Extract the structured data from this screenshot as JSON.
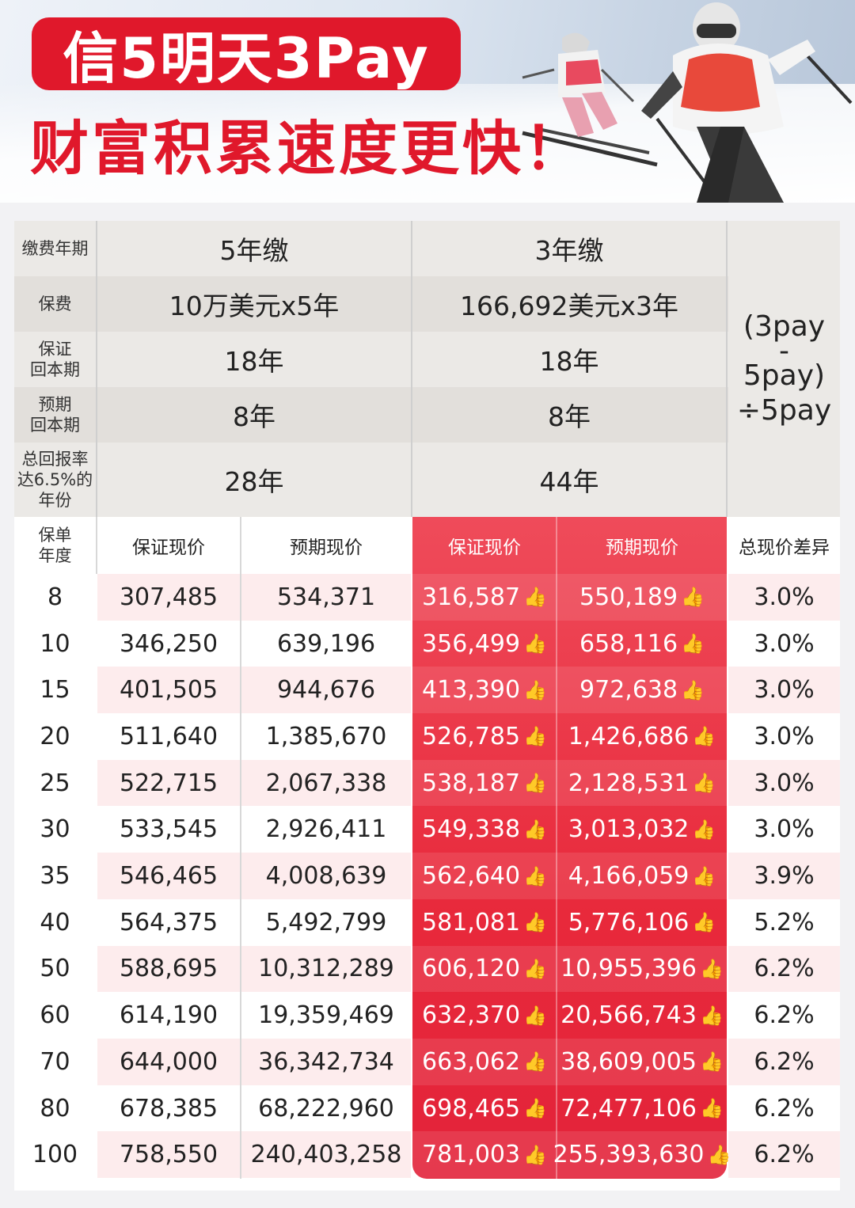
{
  "header": {
    "title_line1": "信5明天3Pay",
    "title_line2": "财富积累速度更快！"
  },
  "top_table": {
    "rows": [
      {
        "label": "缴费年期",
        "pay5": "5年缴",
        "pay3": "3年缴"
      },
      {
        "label": "保费",
        "pay5": "10万美元x5年",
        "pay3": "166,692美元x3年"
      },
      {
        "label": "保证\n回本期",
        "pay5": "18年",
        "pay3": "18年"
      },
      {
        "label": "预期\n回本期",
        "pay5": "8年",
        "pay3": "8年"
      },
      {
        "label": "总回报率\n达6.5%的\n年份",
        "pay5": "28年",
        "pay3": "44年"
      }
    ],
    "formula_line1": "(3pay",
    "formula_line2": "-",
    "formula_line3": "5pay)",
    "formula_line4": "÷5pay"
  },
  "columns": {
    "year": "保单\n年度",
    "guaranteed_5": "保证现价",
    "projected_5": "预期现价",
    "guaranteed_3": "保证现价",
    "projected_3": "预期现价",
    "difference": "总现价差异"
  },
  "thumb_icon": "thumbs-up-icon",
  "rows": [
    {
      "year": "8",
      "g5": "307,485",
      "p5": "534,371",
      "g3": "316,587",
      "p3": "550,189",
      "diff": "3.0%"
    },
    {
      "year": "10",
      "g5": "346,250",
      "p5": "639,196",
      "g3": "356,499",
      "p3": "658,116",
      "diff": "3.0%"
    },
    {
      "year": "15",
      "g5": "401,505",
      "p5": "944,676",
      "g3": "413,390",
      "p3": "972,638",
      "diff": "3.0%"
    },
    {
      "year": "20",
      "g5": "511,640",
      "p5": "1,385,670",
      "g3": "526,785",
      "p3": "1,426,686",
      "diff": "3.0%"
    },
    {
      "year": "25",
      "g5": "522,715",
      "p5": "2,067,338",
      "g3": "538,187",
      "p3": "2,128,531",
      "diff": "3.0%"
    },
    {
      "year": "30",
      "g5": "533,545",
      "p5": "2,926,411",
      "g3": "549,338",
      "p3": "3,013,032",
      "diff": "3.0%"
    },
    {
      "year": "35",
      "g5": "546,465",
      "p5": "4,008,639",
      "g3": "562,640",
      "p3": "4,166,059",
      "diff": "3.9%"
    },
    {
      "year": "40",
      "g5": "564,375",
      "p5": "5,492,799",
      "g3": "581,081",
      "p3": "5,776,106",
      "diff": "5.2%"
    },
    {
      "year": "50",
      "g5": "588,695",
      "p5": "10,312,289",
      "g3": "606,120",
      "p3": "10,955,396",
      "diff": "6.2%"
    },
    {
      "year": "60",
      "g5": "614,190",
      "p5": "19,359,469",
      "g3": "632,370",
      "p3": "20,566,743",
      "diff": "6.2%"
    },
    {
      "year": "70",
      "g5": "644,000",
      "p5": "36,342,734",
      "g3": "663,062",
      "p3": "38,609,005",
      "diff": "6.2%"
    },
    {
      "year": "80",
      "g5": "678,385",
      "p5": "68,222,960",
      "g3": "698,465",
      "p3": "72,477,106",
      "diff": "6.2%"
    },
    {
      "year": "100",
      "g5": "758,550",
      "p5": "240,403,258",
      "g3": "781,003",
      "p3": "255,393,630",
      "diff": "6.2%"
    }
  ],
  "colors": {
    "brand_red": "#e0182b",
    "highlight_red": "#e8293b",
    "thumb_yellow": "#f4b41a"
  }
}
